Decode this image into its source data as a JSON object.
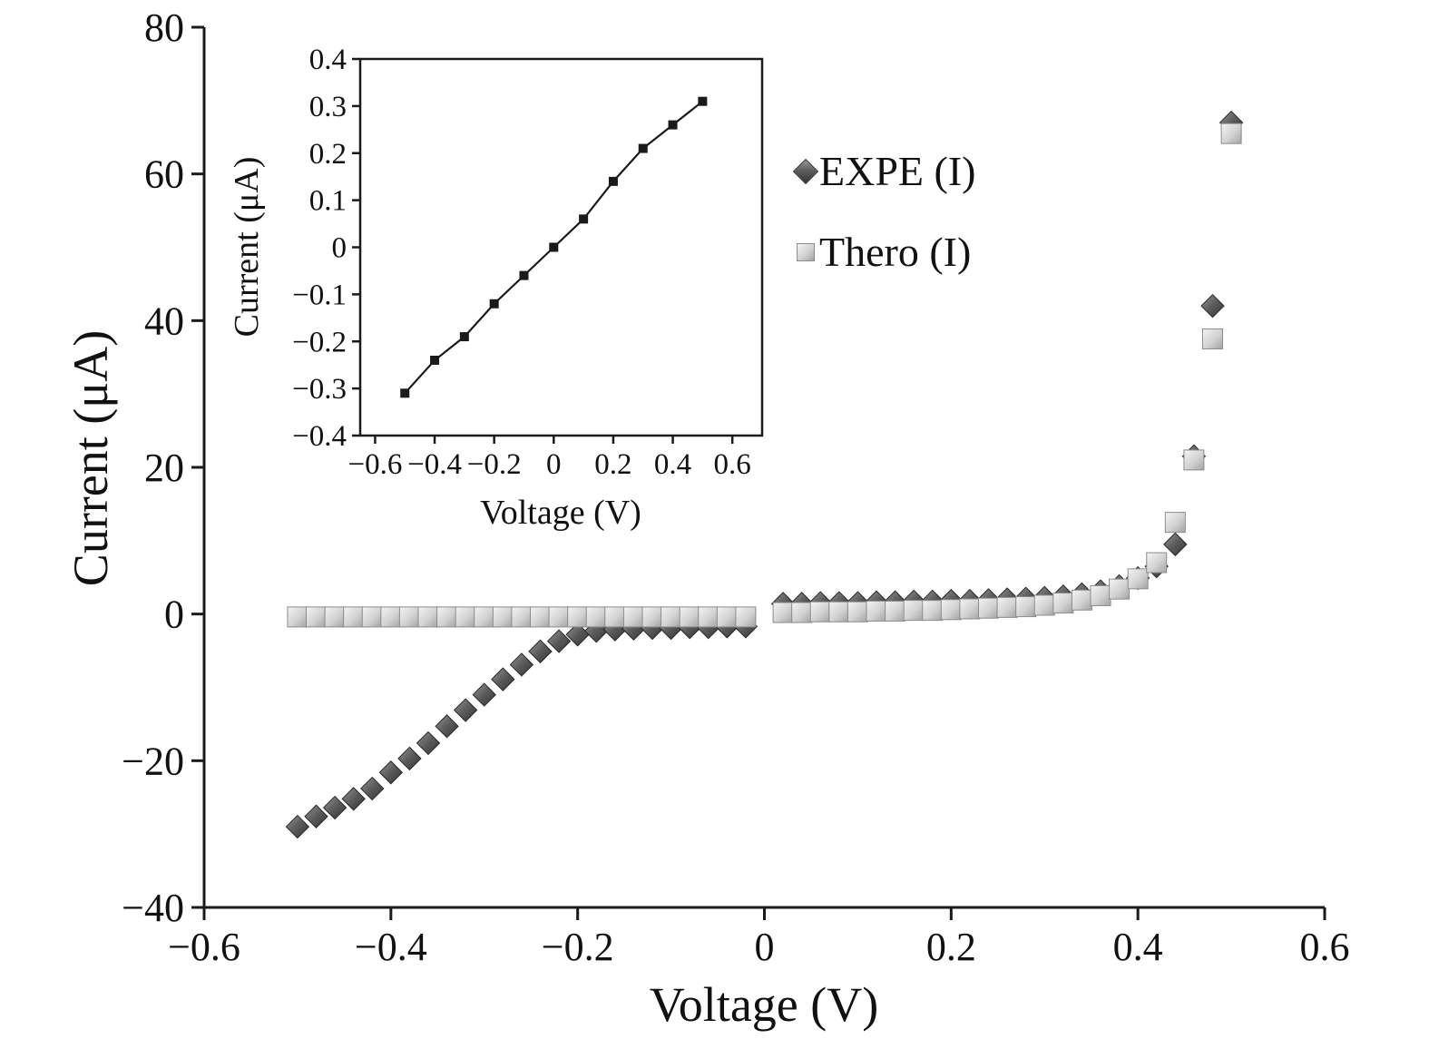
{
  "figure": {
    "background": "#ffffff"
  },
  "style": {
    "text_color": "#111111",
    "axis_color": "#1a1a1a",
    "square_light": "#f4f4f4",
    "square_mid": "#d2d2d2",
    "square_dark": "#a2a2a2",
    "square_stroke": "#8c8c8c",
    "diamond_light": "#969696",
    "diamond_mid": "#5a5a5a",
    "diamond_dark": "#333333",
    "diamond_stroke": "#2a2a2a",
    "inset_line": "#1a1a1a",
    "inset_marker": "#1a1a1a"
  },
  "legend": {
    "position": "upper-right-inside",
    "items": [
      {
        "label": "EXPE (I)",
        "marker": "diamond",
        "color": "#4d4d4d"
      },
      {
        "label": "Thero (I)",
        "marker": "square",
        "color": "#c8c8c8"
      }
    ]
  },
  "chart_data": [
    {
      "id": "main",
      "type": "scatter",
      "title": "",
      "xlabel": "Voltage (V)",
      "ylabel": "Current (μA)",
      "xlim": [
        -0.6,
        0.6
      ],
      "ylim": [
        -40,
        80
      ],
      "grid": false,
      "x_ticks": {
        "values": [
          -0.6,
          -0.4,
          -0.2,
          0,
          0.2,
          0.4,
          0.6
        ],
        "labels": [
          "−0.6",
          "−0.4",
          "−0.2",
          "0",
          "0.2",
          "0.4",
          "0.6"
        ]
      },
      "y_ticks": {
        "values": [
          -40,
          -20,
          0,
          20,
          40,
          60,
          80
        ],
        "labels": [
          "−40",
          "−20",
          "0",
          "20",
          "40",
          "60",
          "80"
        ]
      },
      "x": [
        -0.5,
        -0.48,
        -0.46,
        -0.44,
        -0.42,
        -0.4,
        -0.38,
        -0.36,
        -0.34,
        -0.32,
        -0.3,
        -0.28,
        -0.26,
        -0.24,
        -0.22,
        -0.2,
        -0.18,
        -0.16,
        -0.14,
        -0.12,
        -0.1,
        -0.08,
        -0.06,
        -0.04,
        -0.02,
        0.02,
        0.04,
        0.06,
        0.08,
        0.1,
        0.12,
        0.14,
        0.16,
        0.18,
        0.2,
        0.22,
        0.24,
        0.26,
        0.28,
        0.3,
        0.32,
        0.34,
        0.36,
        0.38,
        0.4,
        0.42,
        0.44,
        0.46,
        0.48,
        0.5
      ],
      "series": [
        {
          "name": "EXPE (I)",
          "marker": "diamond",
          "values": [
            -29,
            -27.6,
            -26.4,
            -25.2,
            -23.8,
            -21.6,
            -19.7,
            -17.6,
            -15.3,
            -13.1,
            -11,
            -8.9,
            -6.9,
            -5.1,
            -3.7,
            -2.8,
            -2.3,
            -2.1,
            -2,
            -1.9,
            -1.9,
            -1.8,
            -1.8,
            -1.7,
            -1.7,
            1.4,
            1.4,
            1.5,
            1.5,
            1.5,
            1.6,
            1.6,
            1.7,
            1.7,
            1.8,
            1.8,
            1.9,
            2,
            2.1,
            2.2,
            2.4,
            2.7,
            3.1,
            3.8,
            4.9,
            6.5,
            9.5,
            21.5,
            42,
            67
          ]
        },
        {
          "name": "Thero (I)",
          "marker": "square",
          "values": [
            -0.4,
            -0.4,
            -0.4,
            -0.4,
            -0.4,
            -0.4,
            -0.4,
            -0.4,
            -0.4,
            -0.4,
            -0.4,
            -0.4,
            -0.4,
            -0.4,
            -0.4,
            -0.4,
            -0.4,
            -0.4,
            -0.4,
            -0.4,
            -0.4,
            -0.4,
            -0.4,
            -0.4,
            -0.4,
            0.2,
            0.2,
            0.3,
            0.3,
            0.3,
            0.4,
            0.4,
            0.5,
            0.5,
            0.6,
            0.7,
            0.8,
            0.9,
            1,
            1.2,
            1.5,
            1.9,
            2.5,
            3.4,
            4.8,
            7,
            12.5,
            21,
            37.5,
            65.5
          ]
        }
      ]
    },
    {
      "id": "inset",
      "type": "line",
      "title": "",
      "xlabel": "Voltage (V)",
      "ylabel": "Current (μA)",
      "xlim": [
        -0.65,
        0.7
      ],
      "ylim": [
        -0.4,
        0.4
      ],
      "grid": false,
      "x_ticks": {
        "values": [
          -0.6,
          -0.4,
          -0.2,
          0,
          0.2,
          0.4,
          0.6
        ],
        "labels": [
          "−0.6",
          "−0.4",
          "−0.2",
          "0",
          "0.2",
          "0.4",
          "0.6"
        ]
      },
      "y_ticks": {
        "values": [
          -0.4,
          -0.3,
          -0.2,
          -0.1,
          0,
          0.1,
          0.2,
          0.3,
          0.4
        ],
        "labels": [
          "−0.4",
          "−0.3",
          "−0.2",
          "−0.1",
          "0",
          "0.1",
          "0.2",
          "0.3",
          "0.4"
        ]
      },
      "x": [
        -0.5,
        -0.4,
        -0.3,
        -0.2,
        -0.1,
        0,
        0.1,
        0.2,
        0.3,
        0.4,
        0.5
      ],
      "series": [
        {
          "name": "Thero (I)",
          "marker": "square",
          "values": [
            -0.31,
            -0.24,
            -0.19,
            -0.12,
            -0.06,
            0,
            0.06,
            0.14,
            0.21,
            0.26,
            0.31
          ]
        }
      ]
    }
  ]
}
